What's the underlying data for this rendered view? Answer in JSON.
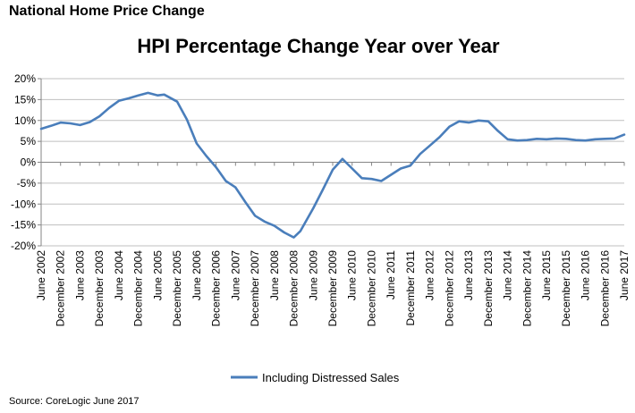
{
  "header": {
    "title": "National  Home  Price  Change"
  },
  "source": "Source: CoreLogic June 2017",
  "colors": {
    "series": "#4a7ebb",
    "axis": "#868686",
    "grid": "#bfbfbf"
  },
  "chart_data": {
    "type": "line",
    "title": "HPI Percentage Change Year over Year",
    "ylim": [
      -20,
      20
    ],
    "yticks": [
      20,
      15,
      10,
      5,
      0,
      -5,
      -10,
      -15,
      -20
    ],
    "ytick_labels": [
      "20%",
      "15%",
      "10%",
      "5%",
      "0%",
      "-5%",
      "-10%",
      "-15%",
      "-20%"
    ],
    "x_start": "June 2002",
    "x_end": "June 2017",
    "x_tick_labels": [
      "June 2002",
      "December 2002",
      "June 2003",
      "December 2003",
      "June 2004",
      "December 2004",
      "June 2005",
      "December 2005",
      "June 2006",
      "December 2006",
      "June 2007",
      "December 2007",
      "June 2008",
      "December 2008",
      "June 2009",
      "December 2009",
      "June 2010",
      "December 2010",
      "June 2011",
      "December 2011",
      "June 2012",
      "December 2012",
      "June 2013",
      "December 2013",
      "June 2014",
      "December 2014",
      "June 2015",
      "December 2015",
      "June 2016",
      "December 2016",
      "June 2017"
    ],
    "legend": "bottom",
    "series": [
      {
        "name": "Including Distressed Sales",
        "x": [
          "Jun 2002",
          "Sep 2002",
          "Dec 2002",
          "Mar 2003",
          "Jun 2003",
          "Sep 2003",
          "Dec 2003",
          "Mar 2004",
          "Jun 2004",
          "Sep 2004",
          "Dec 2004",
          "Mar 2005",
          "Jun 2005",
          "Aug 2005",
          "Dec 2005",
          "Mar 2006",
          "Jun 2006",
          "Sep 2006",
          "Dec 2006",
          "Mar 2007",
          "Jun 2007",
          "Sep 2007",
          "Dec 2007",
          "Mar 2008",
          "Jun 2008",
          "Sep 2008",
          "Dec 2008",
          "Feb 2009",
          "Jun 2009",
          "Sep 2009",
          "Dec 2009",
          "Mar 2010",
          "Jun 2010",
          "Sep 2010",
          "Dec 2010",
          "Mar 2011",
          "Jun 2011",
          "Sep 2011",
          "Dec 2011",
          "Mar 2012",
          "Jun 2012",
          "Sep 2012",
          "Dec 2012",
          "Mar 2013",
          "Jun 2013",
          "Sep 2013",
          "Dec 2013",
          "Mar 2014",
          "Jun 2014",
          "Sep 2014",
          "Dec 2014",
          "Mar 2015",
          "Jun 2015",
          "Sep 2015",
          "Dec 2015",
          "Mar 2016",
          "Jun 2016",
          "Sep 2016",
          "Dec 2016",
          "Mar 2017",
          "Jun 2017"
        ],
        "values": [
          8.0,
          8.7,
          9.5,
          9.3,
          8.9,
          9.6,
          11.0,
          13.0,
          14.7,
          15.3,
          16.0,
          16.6,
          16.0,
          16.2,
          14.5,
          10.2,
          4.5,
          1.5,
          -1.2,
          -4.5,
          -6.0,
          -9.5,
          -12.8,
          -14.2,
          -15.2,
          -16.8,
          -18.0,
          -16.5,
          -11.0,
          -6.5,
          -1.8,
          0.8,
          -1.5,
          -3.8,
          -4.0,
          -4.5,
          -3.0,
          -1.5,
          -0.8,
          2.0,
          4.0,
          6.0,
          8.5,
          9.8,
          9.5,
          10.0,
          9.8,
          7.5,
          5.5,
          5.2,
          5.3,
          5.6,
          5.5,
          5.7,
          5.6,
          5.3,
          5.2,
          5.5,
          5.6,
          5.7,
          6.6
        ]
      }
    ]
  }
}
